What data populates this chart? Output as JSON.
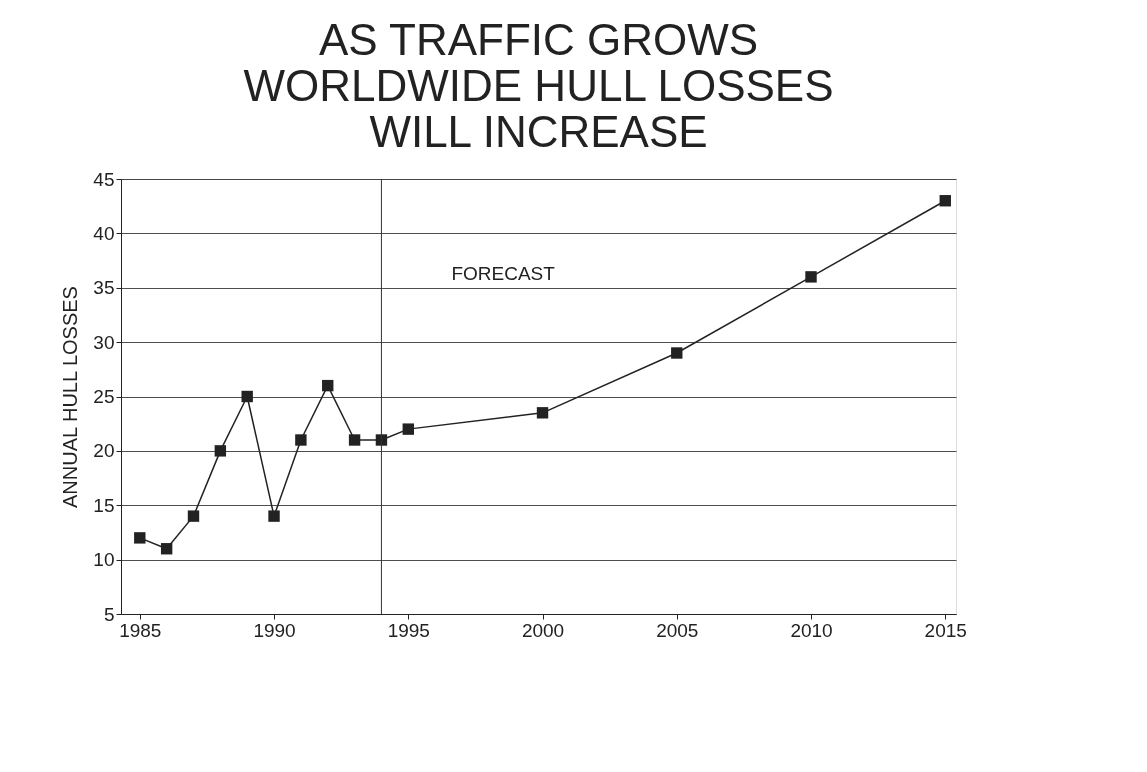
{
  "chart_data": {
    "type": "line",
    "title": "AS TRAFFIC GROWS\nWORLDWIDE HULL LOSSES\nWILL INCREASE",
    "ylabel": "ANNUAL HULL LOSSES",
    "x": [
      1985,
      1986,
      1987,
      1988,
      1989,
      1990,
      1991,
      1992,
      1993,
      1994,
      1995,
      2000,
      2005,
      2010,
      2015
    ],
    "series": [
      {
        "color": "#222222",
        "values": [
          12,
          11,
          14,
          20,
          25,
          14,
          21,
          26,
          21,
          21,
          22,
          23.5,
          29,
          36,
          43
        ]
      }
    ],
    "xlim": [
      1984.3,
      2015.4
    ],
    "xticks": [
      1985,
      1990,
      1995,
      2000,
      2005,
      2010,
      2015
    ],
    "ylim": [
      5,
      45
    ],
    "yticks": [
      5,
      10,
      15,
      20,
      25,
      30,
      35,
      40,
      45
    ],
    "grid": "y",
    "marker": "square",
    "line_style": "solid",
    "ref_lines": [
      {
        "axis": "x",
        "value": 1994,
        "label": "FORECAST",
        "color": "#333333"
      }
    ]
  }
}
